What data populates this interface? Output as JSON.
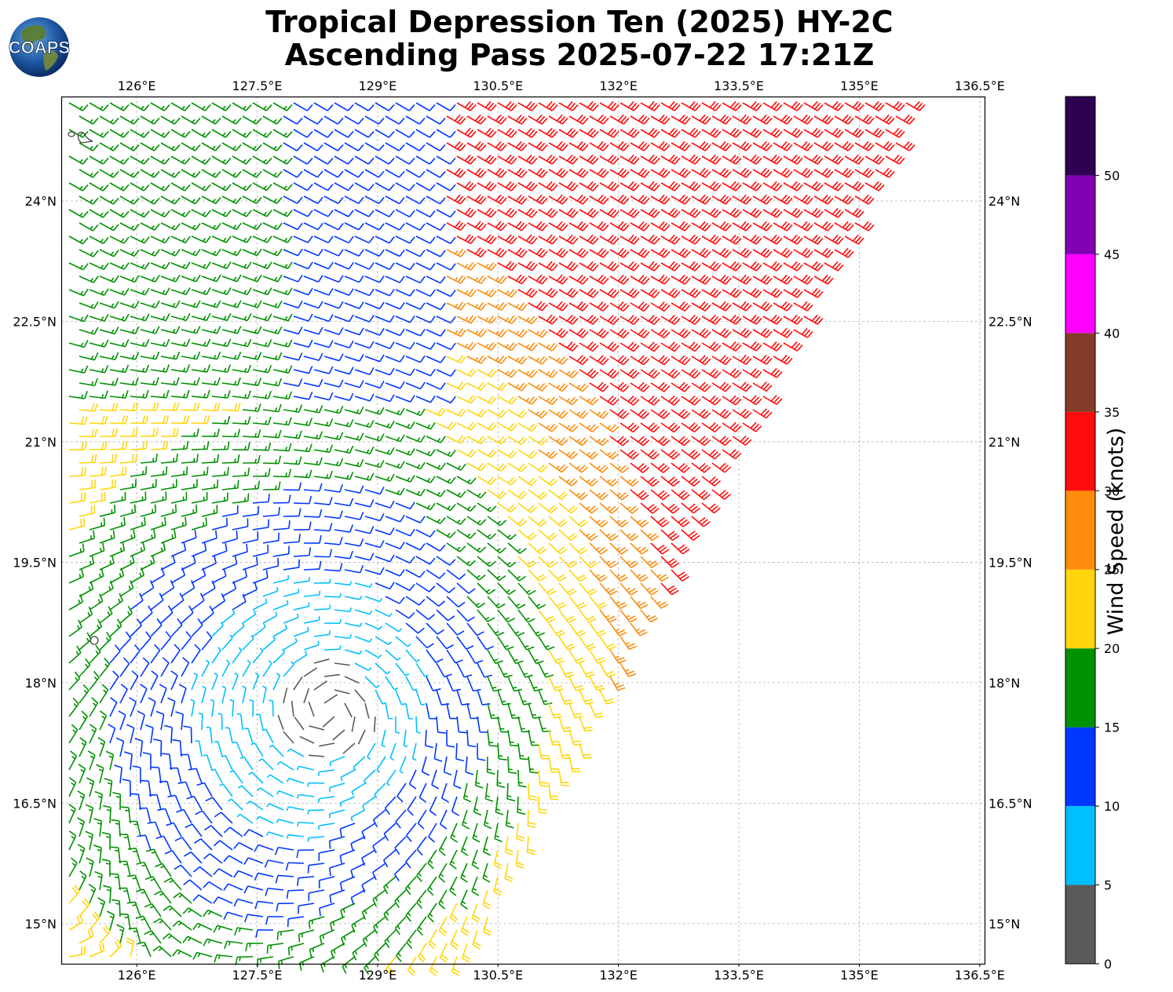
{
  "header": {
    "title_line1": "Tropical Depression Ten (2025) HY-2C",
    "title_line2": "Ascending Pass 2025-07-22 17:21Z",
    "logo_text": "COAPS"
  },
  "map": {
    "lon_labels": [
      "126°E",
      "127.5°E",
      "129°E",
      "130.5°E",
      "132°E",
      "133.5°E",
      "135°E",
      "136.5°E"
    ],
    "lon_values": [
      126,
      127.5,
      129,
      130.5,
      132,
      133.5,
      135,
      136.5
    ],
    "lat_labels": [
      "24°N",
      "22.5°N",
      "21°N",
      "19.5°N",
      "18°N",
      "16.5°N",
      "15°N"
    ],
    "lat_values": [
      24,
      22.5,
      21,
      19.5,
      18,
      16.5,
      15
    ],
    "lon_range": [
      125.06,
      136.56
    ],
    "lat_range": [
      14.5,
      25.3
    ],
    "storm_center": {
      "lon": 128.4,
      "lat": 17.65
    },
    "gridlines": true
  },
  "colorbar": {
    "label": "Wind Speed (knots)",
    "tick_labels": [
      "0",
      "5",
      "10",
      "15",
      "20",
      "25",
      "30",
      "35",
      "40",
      "45",
      "50"
    ],
    "bins": [
      {
        "min": 0,
        "max": 5,
        "color": "#5a5a5a"
      },
      {
        "min": 5,
        "max": 10,
        "color": "#00bfff"
      },
      {
        "min": 10,
        "max": 15,
        "color": "#0037ff"
      },
      {
        "min": 15,
        "max": 20,
        "color": "#009100"
      },
      {
        "min": 20,
        "max": 25,
        "color": "#ffd60d"
      },
      {
        "min": 25,
        "max": 30,
        "color": "#ff8c0d"
      },
      {
        "min": 30,
        "max": 35,
        "color": "#ff0d0d"
      },
      {
        "min": 35,
        "max": 40,
        "color": "#823c28"
      },
      {
        "min": 40,
        "max": 45,
        "color": "#ff00ff"
      },
      {
        "min": 45,
        "max": 50,
        "color": "#8200b4"
      },
      {
        "min": 50,
        "max": 55,
        "color": "#2d0050"
      }
    ]
  }
}
